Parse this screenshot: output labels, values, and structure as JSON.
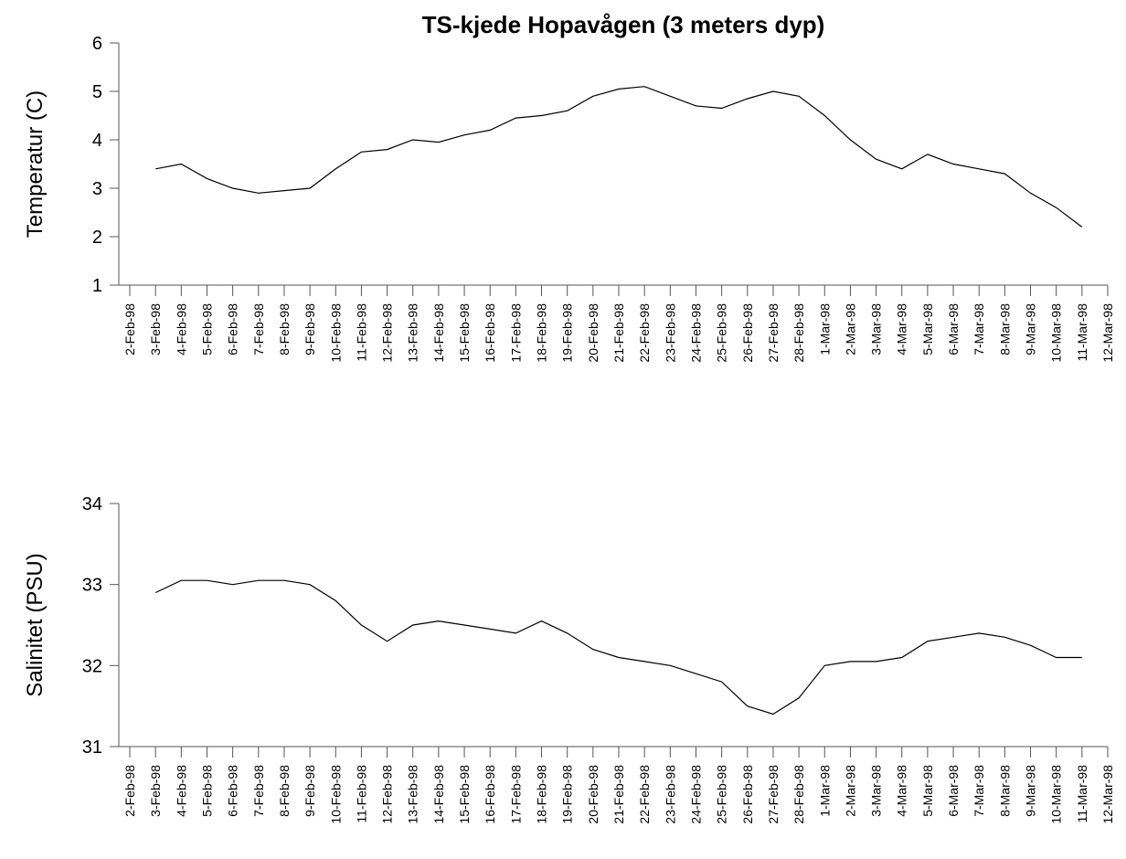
{
  "chart_data": [
    {
      "type": "line",
      "title": "TS-kjede Hopavågen (3 meters dyp)",
      "ylabel": "Temperatur (C)",
      "color": "#000000",
      "x": [
        "1998-02-03",
        "1998-02-04",
        "1998-02-05",
        "1998-02-06",
        "1998-02-07",
        "1998-02-08",
        "1998-02-09",
        "1998-02-10",
        "1998-02-11",
        "1998-02-12",
        "1998-02-13",
        "1998-02-14",
        "1998-02-15",
        "1998-02-16",
        "1998-02-17",
        "1998-02-18",
        "1998-02-19",
        "1998-02-20",
        "1998-02-21",
        "1998-02-22",
        "1998-02-23",
        "1998-02-24",
        "1998-02-25",
        "1998-02-26",
        "1998-02-27",
        "1998-02-28",
        "1998-03-01",
        "1998-03-02",
        "1998-03-03",
        "1998-03-04",
        "1998-03-05",
        "1998-03-06",
        "1998-03-07",
        "1998-03-08",
        "1998-03-09",
        "1998-03-10",
        "1998-03-11"
      ],
      "values": [
        3.4,
        3.5,
        3.2,
        3.0,
        2.9,
        2.95,
        3.0,
        3.4,
        3.75,
        3.8,
        4.0,
        3.95,
        4.1,
        4.2,
        4.45,
        4.5,
        4.6,
        4.9,
        5.05,
        5.1,
        4.9,
        4.7,
        4.65,
        4.85,
        5.0,
        4.9,
        4.5,
        4.0,
        3.6,
        3.4,
        3.7,
        3.5,
        3.4,
        3.3,
        2.9,
        2.6,
        2.2
      ],
      "xlim": [
        "1998-02-02",
        "1998-03-12"
      ],
      "ylim": [
        1,
        6
      ],
      "yticks": [
        1,
        2,
        3,
        4,
        5,
        6
      ],
      "xticks": [
        {
          "value": "1998-02-02",
          "label": "2-Feb-98"
        },
        {
          "value": "1998-02-03",
          "label": "3-Feb-98"
        },
        {
          "value": "1998-02-04",
          "label": "4-Feb-98"
        },
        {
          "value": "1998-02-05",
          "label": "5-Feb-98"
        },
        {
          "value": "1998-02-06",
          "label": "6-Feb-98"
        },
        {
          "value": "1998-02-07",
          "label": "7-Feb-98"
        },
        {
          "value": "1998-02-08",
          "label": "8-Feb-98"
        },
        {
          "value": "1998-02-09",
          "label": "9-Feb-98"
        },
        {
          "value": "1998-02-10",
          "label": "10-Feb-98"
        },
        {
          "value": "1998-02-11",
          "label": "11-Feb-98"
        },
        {
          "value": "1998-02-12",
          "label": "12-Feb-98"
        },
        {
          "value": "1998-02-13",
          "label": "13-Feb-98"
        },
        {
          "value": "1998-02-14",
          "label": "14-Feb-98"
        },
        {
          "value": "1998-02-15",
          "label": "15-Feb-98"
        },
        {
          "value": "1998-02-16",
          "label": "16-Feb-98"
        },
        {
          "value": "1998-02-17",
          "label": "17-Feb-98"
        },
        {
          "value": "1998-02-18",
          "label": "18-Feb-98"
        },
        {
          "value": "1998-02-19",
          "label": "19-Feb-98"
        },
        {
          "value": "1998-02-20",
          "label": "20-Feb-98"
        },
        {
          "value": "1998-02-21",
          "label": "21-Feb-98"
        },
        {
          "value": "1998-02-22",
          "label": "22-Feb-98"
        },
        {
          "value": "1998-02-23",
          "label": "23-Feb-98"
        },
        {
          "value": "1998-02-24",
          "label": "24-Feb-98"
        },
        {
          "value": "1998-02-25",
          "label": "25-Feb-98"
        },
        {
          "value": "1998-02-26",
          "label": "26-Feb-98"
        },
        {
          "value": "1998-02-27",
          "label": "27-Feb-98"
        },
        {
          "value": "1998-02-28",
          "label": "28-Feb-98"
        },
        {
          "value": "1998-03-01",
          "label": "1-Mar-98"
        },
        {
          "value": "1998-03-02",
          "label": "2-Mar-98"
        },
        {
          "value": "1998-03-03",
          "label": "3-Mar-98"
        },
        {
          "value": "1998-03-04",
          "label": "4-Mar-98"
        },
        {
          "value": "1998-03-05",
          "label": "5-Mar-98"
        },
        {
          "value": "1998-03-06",
          "label": "6-Mar-98"
        },
        {
          "value": "1998-03-07",
          "label": "7-Mar-98"
        },
        {
          "value": "1998-03-08",
          "label": "8-Mar-98"
        },
        {
          "value": "1998-03-09",
          "label": "9-Mar-98"
        },
        {
          "value": "1998-03-10",
          "label": "10-Mar-98"
        },
        {
          "value": "1998-03-11",
          "label": "11-Mar-98"
        },
        {
          "value": "1998-03-12",
          "label": "12-Mar-98"
        }
      ]
    },
    {
      "type": "line",
      "ylabel": "Salinitet (PSU)",
      "color": "#000000",
      "x": [
        "1998-02-03",
        "1998-02-04",
        "1998-02-05",
        "1998-02-06",
        "1998-02-07",
        "1998-02-08",
        "1998-02-09",
        "1998-02-10",
        "1998-02-11",
        "1998-02-12",
        "1998-02-13",
        "1998-02-14",
        "1998-02-15",
        "1998-02-16",
        "1998-02-17",
        "1998-02-18",
        "1998-02-19",
        "1998-02-20",
        "1998-02-21",
        "1998-02-22",
        "1998-02-23",
        "1998-02-24",
        "1998-02-25",
        "1998-02-26",
        "1998-02-27",
        "1998-02-28",
        "1998-03-01",
        "1998-03-02",
        "1998-03-03",
        "1998-03-04",
        "1998-03-05",
        "1998-03-06",
        "1998-03-07",
        "1998-03-08",
        "1998-03-09",
        "1998-03-10",
        "1998-03-11"
      ],
      "values": [
        32.9,
        33.05,
        33.05,
        33.0,
        33.05,
        33.05,
        33.0,
        32.8,
        32.5,
        32.3,
        32.5,
        32.55,
        32.5,
        32.45,
        32.4,
        32.55,
        32.4,
        32.2,
        32.1,
        32.05,
        32.0,
        31.9,
        31.8,
        31.5,
        31.4,
        31.6,
        32.0,
        32.05,
        32.05,
        32.1,
        32.3,
        32.35,
        32.4,
        32.35,
        32.25,
        32.1,
        32.1
      ],
      "xlim": [
        "1998-02-02",
        "1998-03-12"
      ],
      "ylim": [
        31,
        34
      ],
      "yticks": [
        31,
        32,
        33,
        34
      ],
      "xticks": [
        {
          "value": "1998-02-02",
          "label": "2-Feb-98"
        },
        {
          "value": "1998-02-03",
          "label": "3-Feb-98"
        },
        {
          "value": "1998-02-04",
          "label": "4-Feb-98"
        },
        {
          "value": "1998-02-05",
          "label": "5-Feb-98"
        },
        {
          "value": "1998-02-06",
          "label": "6-Feb-98"
        },
        {
          "value": "1998-02-07",
          "label": "7-Feb-98"
        },
        {
          "value": "1998-02-08",
          "label": "8-Feb-98"
        },
        {
          "value": "1998-02-09",
          "label": "9-Feb-98"
        },
        {
          "value": "1998-02-10",
          "label": "10-Feb-98"
        },
        {
          "value": "1998-02-11",
          "label": "11-Feb-98"
        },
        {
          "value": "1998-02-12",
          "label": "12-Feb-98"
        },
        {
          "value": "1998-02-13",
          "label": "13-Feb-98"
        },
        {
          "value": "1998-02-14",
          "label": "14-Feb-98"
        },
        {
          "value": "1998-02-15",
          "label": "15-Feb-98"
        },
        {
          "value": "1998-02-16",
          "label": "16-Feb-98"
        },
        {
          "value": "1998-02-17",
          "label": "17-Feb-98"
        },
        {
          "value": "1998-02-18",
          "label": "18-Feb-98"
        },
        {
          "value": "1998-02-19",
          "label": "19-Feb-98"
        },
        {
          "value": "1998-02-20",
          "label": "20-Feb-98"
        },
        {
          "value": "1998-02-21",
          "label": "21-Feb-98"
        },
        {
          "value": "1998-02-22",
          "label": "22-Feb-98"
        },
        {
          "value": "1998-02-23",
          "label": "23-Feb-98"
        },
        {
          "value": "1998-02-24",
          "label": "24-Feb-98"
        },
        {
          "value": "1998-02-25",
          "label": "25-Feb-98"
        },
        {
          "value": "1998-02-26",
          "label": "26-Feb-98"
        },
        {
          "value": "1998-02-27",
          "label": "27-Feb-98"
        },
        {
          "value": "1998-02-28",
          "label": "28-Feb-98"
        },
        {
          "value": "1998-03-01",
          "label": "1-Mar-98"
        },
        {
          "value": "1998-03-02",
          "label": "2-Mar-98"
        },
        {
          "value": "1998-03-03",
          "label": "3-Mar-98"
        },
        {
          "value": "1998-03-04",
          "label": "4-Mar-98"
        },
        {
          "value": "1998-03-05",
          "label": "5-Mar-98"
        },
        {
          "value": "1998-03-06",
          "label": "6-Mar-98"
        },
        {
          "value": "1998-03-07",
          "label": "7-Mar-98"
        },
        {
          "value": "1998-03-08",
          "label": "8-Mar-98"
        },
        {
          "value": "1998-03-09",
          "label": "9-Mar-98"
        },
        {
          "value": "1998-03-10",
          "label": "10-Mar-98"
        },
        {
          "value": "1998-03-11",
          "label": "11-Mar-98"
        },
        {
          "value": "1998-03-12",
          "label": "12-Mar-98"
        }
      ]
    }
  ]
}
